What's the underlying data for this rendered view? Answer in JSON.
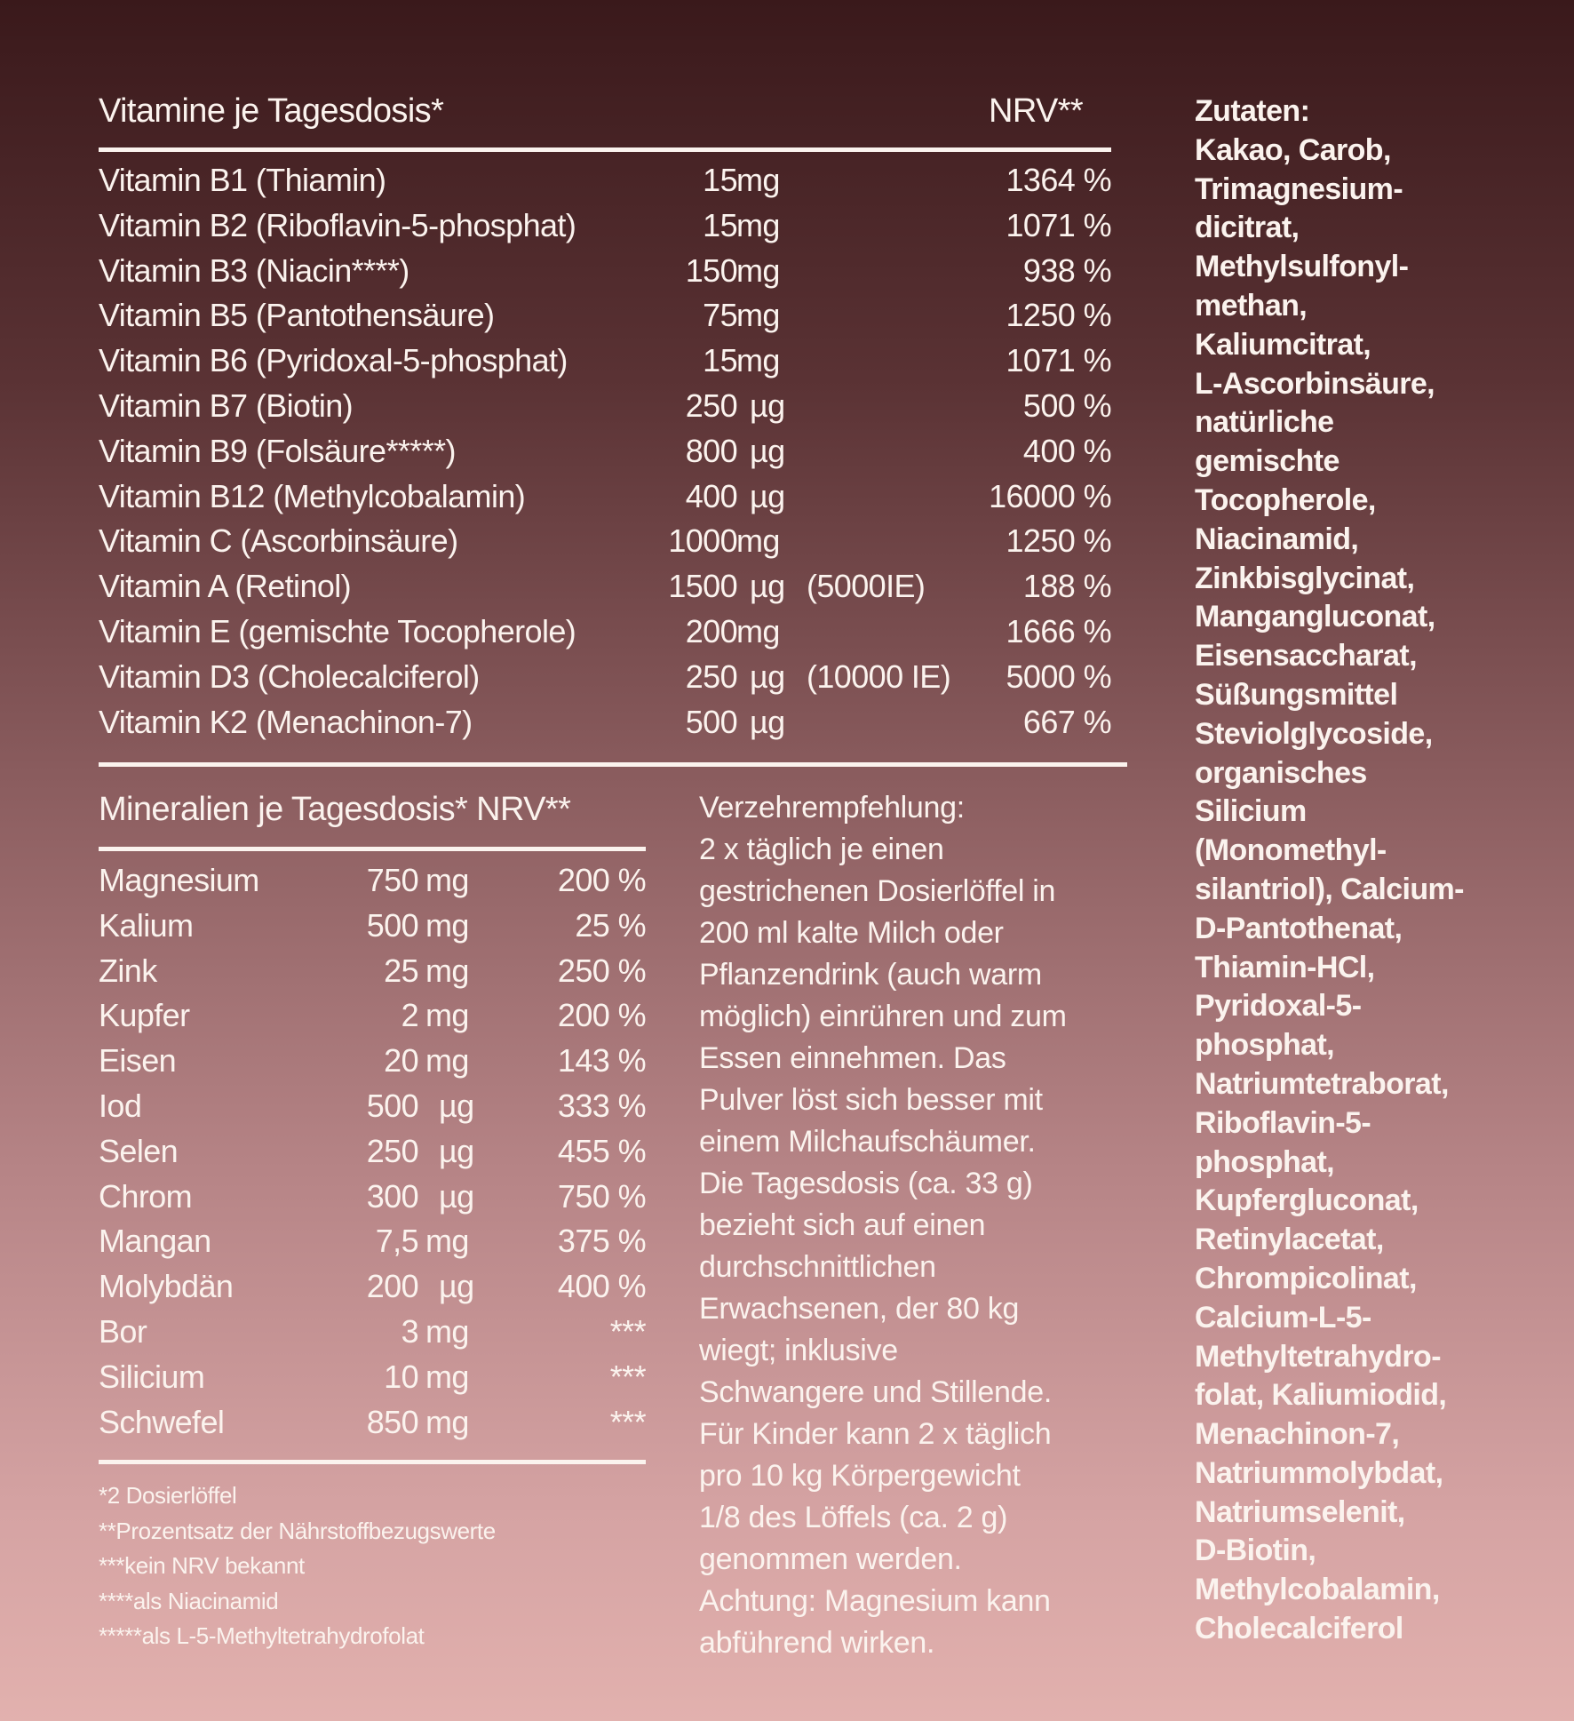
{
  "vitamins": {
    "title": "Vitamine je Tagesdosis*",
    "nrv_header": "NRV**",
    "rows": [
      {
        "name": "Vitamin B1 (Thiamin)",
        "amount": "15",
        "unit": "mg",
        "ie": "",
        "nrv": "1364 %"
      },
      {
        "name": "Vitamin B2 (Riboflavin-5-phosphat)",
        "amount": "15",
        "unit": "mg",
        "ie": "",
        "nrv": "1071 %"
      },
      {
        "name": "Vitamin B3 (Niacin****)",
        "amount": "150",
        "unit": "mg",
        "ie": "",
        "nrv": "938 %"
      },
      {
        "name": "Vitamin B5 (Pantothensäure)",
        "amount": "75",
        "unit": "mg",
        "ie": "",
        "nrv": "1250 %"
      },
      {
        "name": "Vitamin B6 (Pyridoxal-5-phosphat)",
        "amount": "15",
        "unit": "mg",
        "ie": "",
        "nrv": "1071 %"
      },
      {
        "name": "Vitamin B7 (Biotin)",
        "amount": "250",
        "unit": "µg",
        "ie": "",
        "nrv": "500 %"
      },
      {
        "name": "Vitamin B9 (Folsäure*****)",
        "amount": "800",
        "unit": "µg",
        "ie": "",
        "nrv": "400 %"
      },
      {
        "name": "Vitamin B12 (Methylcobalamin)",
        "amount": "400",
        "unit": "µg",
        "ie": "",
        "nrv": "16000 %"
      },
      {
        "name": "Vitamin C (Ascorbinsäure)",
        "amount": "1000",
        "unit": "mg",
        "ie": "",
        "nrv": "1250 %"
      },
      {
        "name": "Vitamin A (Retinol)",
        "amount": "1500",
        "unit": "µg",
        "ie": "(5000IE)",
        "nrv": "188 %"
      },
      {
        "name": "Vitamin E (gemischte Tocopherole)",
        "amount": "200",
        "unit": "mg",
        "ie": "",
        "nrv": "1666 %"
      },
      {
        "name": "Vitamin D3 (Cholecalciferol)",
        "amount": "250",
        "unit": "µg",
        "ie": "(10000 IE)",
        "nrv": "5000 %"
      },
      {
        "name": "Vitamin K2 (Menachinon-7)",
        "amount": "500",
        "unit": "µg",
        "ie": "",
        "nrv": "667 %"
      }
    ]
  },
  "minerals": {
    "title": "Mineralien je Tagesdosis* NRV**",
    "rows": [
      {
        "name": "Magnesium",
        "amount": "750",
        "unit": "mg",
        "nrv": "200 %"
      },
      {
        "name": "Kalium",
        "amount": "500",
        "unit": "mg",
        "nrv": "25 %"
      },
      {
        "name": "Zink",
        "amount": "25",
        "unit": "mg",
        "nrv": "250 %"
      },
      {
        "name": "Kupfer",
        "amount": "2",
        "unit": "mg",
        "nrv": "200 %"
      },
      {
        "name": "Eisen",
        "amount": "20",
        "unit": "mg",
        "nrv": "143 %"
      },
      {
        "name": "Iod",
        "amount": "500",
        "unit": "µg",
        "nrv": "333 %"
      },
      {
        "name": "Selen",
        "amount": "250",
        "unit": "µg",
        "nrv": "455 %"
      },
      {
        "name": "Chrom",
        "amount": "300",
        "unit": "µg",
        "nrv": "750 %"
      },
      {
        "name": "Mangan",
        "amount": "7,5",
        "unit": "mg",
        "nrv": "375 %"
      },
      {
        "name": "Molybdän",
        "amount": "200",
        "unit": "µg",
        "nrv": "400 %"
      },
      {
        "name": "Bor",
        "amount": "3",
        "unit": "mg",
        "nrv": "***"
      },
      {
        "name": "Silicium",
        "amount": "10",
        "unit": "mg",
        "nrv": "***"
      },
      {
        "name": "Schwefel",
        "amount": "850",
        "unit": "mg",
        "nrv": "***"
      }
    ]
  },
  "footnotes": [
    "*2 Dosierlöffel",
    "**Prozentsatz der Nährstoffbezugswerte",
    "***kein NRV bekannt",
    "****als Niacinamid",
    "*****als L-5-Methyltetrahydrofolat"
  ],
  "usage": {
    "lines": [
      "Verzehrempfehlung:",
      "2 x täglich je einen",
      "gestrichenen Dosierlöffel in",
      "200 ml kalte Milch oder",
      "Pflanzendrink (auch warm",
      "möglich) einrühren und zum",
      "Essen einnehmen. Das",
      "Pulver löst sich besser mit",
      "einem Milchaufschäumer.",
      "Die Tagesdosis (ca. 33 g)",
      "bezieht sich auf einen",
      "durchschnittlichen",
      "Erwachsenen, der 80 kg",
      "wiegt; inklusive",
      "Schwangere und Stillende.",
      "Für Kinder kann 2 x täglich",
      "pro 10 kg Körpergewicht",
      "1/8 des Löffels (ca. 2 g)",
      "genommen werden.",
      "Achtung: Magnesium kann",
      "abführend wirken."
    ]
  },
  "ingredients": {
    "lines": [
      "Zutaten:",
      "Kakao, Carob,",
      "Trimagnesium-",
      "dicitrat,",
      "Methylsulfonyl-",
      "methan,",
      "Kaliumcitrat,",
      "L-Ascorbinsäure,",
      "natürliche",
      "gemischte",
      "Tocopherole,",
      "Niacinamid,",
      "Zinkbisglycinat,",
      "Mangangluconat,",
      "Eisensaccharat,",
      "Süßungsmittel",
      "Steviolglycoside,",
      "organisches",
      "Silicium",
      "(Monomethyl-",
      "silantriol), Calcium-",
      "D-Pantothenat,",
      "Thiamin-HCl,",
      "Pyridoxal-5-",
      "phosphat,",
      "Natriumtetraborat,",
      "Riboflavin-5-",
      "phosphat,",
      "Kupfergluconat,",
      "Retinylacetat,",
      "Chrompicolinat,",
      "Calcium-L-5-",
      "Methyltetrahydro-",
      "folat, Kaliumiodid,",
      "Menachinon-7,",
      "Natriummolybdat,",
      "Natriumselenit,",
      "D-Biotin,",
      "Methylcobalamin,",
      "Cholecalciferol"
    ]
  },
  "colors": {
    "text": "#fbf3ee",
    "bg_top": "#3a191b",
    "bg_bottom": "#e2b1ae"
  }
}
